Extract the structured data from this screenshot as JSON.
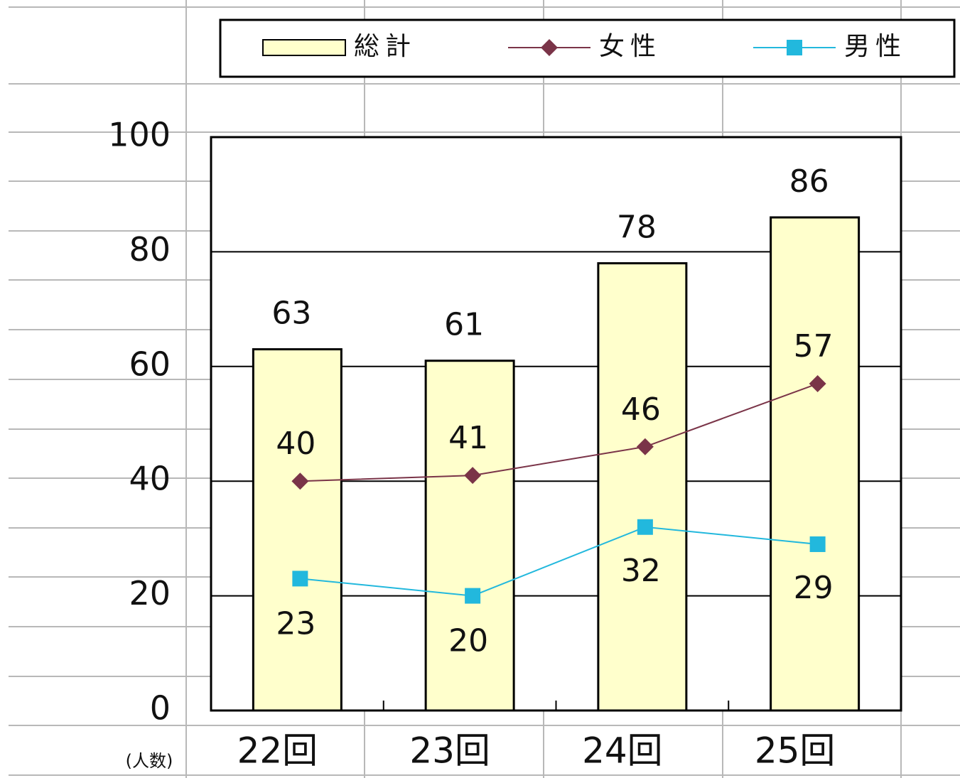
{
  "chart_data": {
    "type": "bar",
    "categories": [
      "22回",
      "23回",
      "24回",
      "25回"
    ],
    "series": [
      {
        "name": "総計",
        "type": "bar",
        "color": "#ffffcc",
        "values": [
          63,
          61,
          78,
          86
        ]
      },
      {
        "name": "女性",
        "type": "line",
        "color": "#7a3448",
        "marker": "diamond",
        "values": [
          40,
          41,
          46,
          57
        ]
      },
      {
        "name": "男性",
        "type": "line",
        "color": "#22b8dd",
        "marker": "square",
        "values": [
          23,
          20,
          32,
          29
        ]
      }
    ],
    "ylabel": "(人数)",
    "ylim": [
      0,
      100
    ],
    "yticks": [
      0,
      20,
      40,
      60,
      80,
      100
    ],
    "grid": true,
    "legend": "top"
  }
}
